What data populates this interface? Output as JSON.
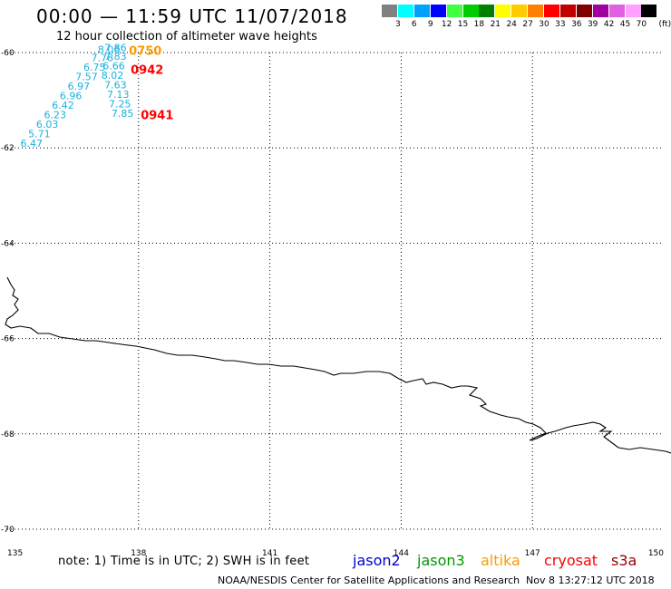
{
  "header": {
    "title": "00:00 — 11:59 UTC 11/07/2018",
    "subtitle": "12 hour collection of altimeter wave heights"
  },
  "colorbar": {
    "unit": "(ft)",
    "steps": [
      {
        "label": "3",
        "color": "#808080"
      },
      {
        "label": "6",
        "color": "#00ffff"
      },
      {
        "label": "9",
        "color": "#00a0ff"
      },
      {
        "label": "12",
        "color": "#0000ff"
      },
      {
        "label": "15",
        "color": "#40ff40"
      },
      {
        "label": "18",
        "color": "#00cc00"
      },
      {
        "label": "21",
        "color": "#008000"
      },
      {
        "label": "24",
        "color": "#ffff00"
      },
      {
        "label": "27",
        "color": "#ffcc00"
      },
      {
        "label": "30",
        "color": "#ff8000"
      },
      {
        "label": "33",
        "color": "#ff0000"
      },
      {
        "label": "36",
        "color": "#c00000"
      },
      {
        "label": "39",
        "color": "#800000"
      },
      {
        "label": "42",
        "color": "#a000a0"
      },
      {
        "label": "45",
        "color": "#e060e0"
      },
      {
        "label": "70",
        "color": "#ffa0ff"
      },
      {
        "label": "",
        "color": "#000000"
      }
    ]
  },
  "map": {
    "lon_range": [
      135,
      150
    ],
    "lat_range": [
      -70,
      -60
    ],
    "lon_ticks": [
      "135",
      "138",
      "141",
      "144",
      "147",
      "150"
    ],
    "lat_ticks": [
      "-60",
      "-62",
      "-64",
      "-66",
      "-68",
      "-70"
    ],
    "grid": "dotted",
    "coastline_color": "#000000"
  },
  "observations": [
    {
      "value": "6.47",
      "lon": 135.3,
      "lat": -61.98
    },
    {
      "value": "5.71",
      "lon": 135.48,
      "lat": -61.78
    },
    {
      "value": "6.03",
      "lon": 135.66,
      "lat": -61.58
    },
    {
      "value": "6.23",
      "lon": 135.84,
      "lat": -61.38
    },
    {
      "value": "6.42",
      "lon": 136.02,
      "lat": -61.18
    },
    {
      "value": "6.96",
      "lon": 136.2,
      "lat": -60.98
    },
    {
      "value": "6.97",
      "lon": 136.38,
      "lat": -60.78
    },
    {
      "value": "7.57",
      "lon": 136.56,
      "lat": -60.58
    },
    {
      "value": "6.75",
      "lon": 136.74,
      "lat": -60.38
    },
    {
      "value": "7.78",
      "lon": 136.92,
      "lat": -60.18
    },
    {
      "value": "8.06",
      "lon": 137.07,
      "lat": -60.01
    },
    {
      "value": "7.86",
      "lon": 137.22,
      "lat": -59.97
    },
    {
      "value": "7.83",
      "lon": 137.22,
      "lat": -60.15
    },
    {
      "value": "6.66",
      "lon": 137.18,
      "lat": -60.35
    },
    {
      "value": "8.02",
      "lon": 137.15,
      "lat": -60.55
    },
    {
      "value": "7.63",
      "lon": 137.22,
      "lat": -60.75
    },
    {
      "value": "7.13",
      "lon": 137.28,
      "lat": -60.95
    },
    {
      "value": "7.25",
      "lon": 137.32,
      "lat": -61.15
    },
    {
      "value": "7.85",
      "lon": 137.38,
      "lat": -61.35
    }
  ],
  "passes": [
    {
      "label": "0750",
      "lon": 137.78,
      "lat": -60.05,
      "color": "#ff9900"
    },
    {
      "label": "0942",
      "lon": 137.82,
      "lat": -60.45,
      "color": "#ff0000"
    },
    {
      "label": "0941",
      "lon": 138.05,
      "lat": -61.4,
      "color": "#ff0000"
    }
  ],
  "footer": {
    "note": "note: 1) Time is in UTC; 2) SWH is in feet",
    "satellites": [
      {
        "name": "jason2",
        "color": "#0000cc"
      },
      {
        "name": "jason3",
        "color": "#009900"
      },
      {
        "name": "altika",
        "color": "#ff9900"
      },
      {
        "name": "cryosat",
        "color": "#ff0000"
      },
      {
        "name": "s3a",
        "color": "#990000"
      }
    ],
    "credit": "NOAA/NESDIS Center for Satellite Applications and Research",
    "generated": "Nov  8 13:27:12 UTC 2018"
  }
}
